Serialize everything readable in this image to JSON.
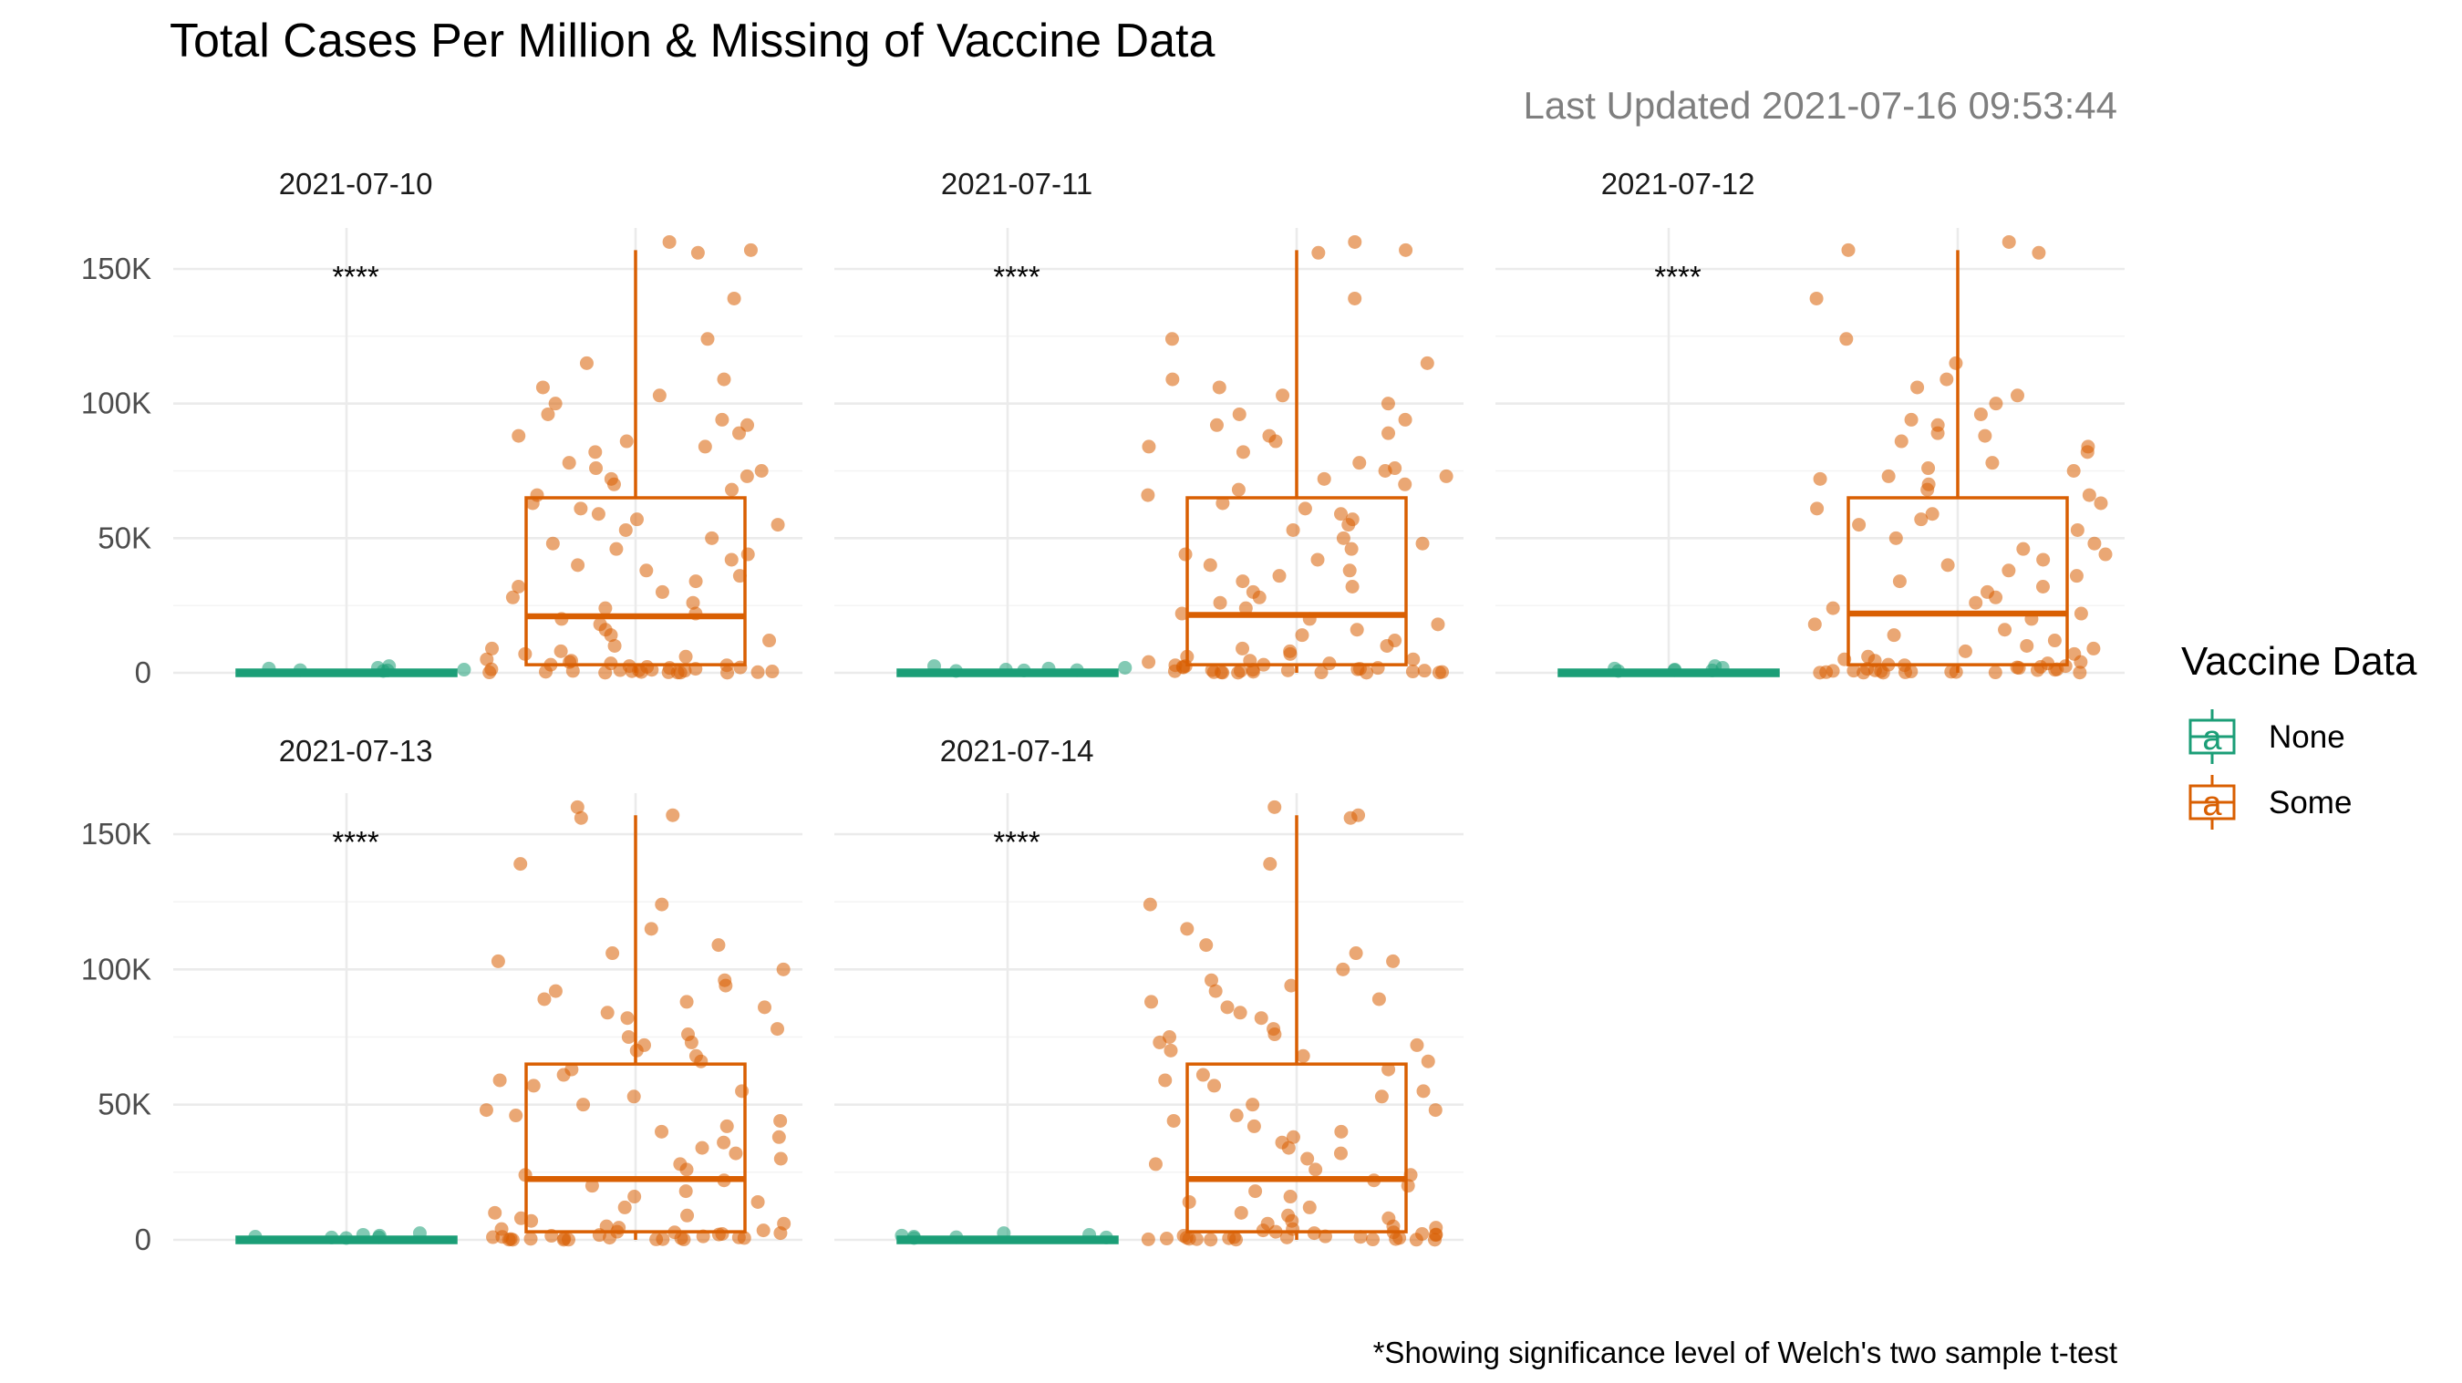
{
  "chart_data": {
    "type": "box",
    "title": "Total Cases Per Million & Missing of Vaccine Data",
    "subtitle": "Last Updated 2021-07-16 09:53:44",
    "caption": "*Showing significance level of Welch's two sample t-test",
    "ylim": [
      0,
      160000
    ],
    "y_ticks": [
      0,
      50000,
      100000,
      150000
    ],
    "y_tick_labels": [
      "0",
      "50K",
      "100K",
      "150K"
    ],
    "grid": true,
    "legend": {
      "title": "Vaccine Data",
      "position": "right",
      "glyph": "a",
      "entries": [
        {
          "name": "None",
          "color": "#1b9e77"
        },
        {
          "name": "Some",
          "color": "#d95f02"
        }
      ]
    },
    "groups": [
      "None",
      "Some"
    ],
    "facets": [
      {
        "label": "2021-07-10",
        "significance": "****",
        "box": {
          "None": {
            "q1": 0,
            "median": 0,
            "q3": 0,
            "lower": 0,
            "upper": 0
          },
          "Some": {
            "q1": 3000,
            "median": 21000,
            "q3": 65000,
            "lower": 0,
            "upper": 157000
          }
        },
        "outliers": {
          "Some": [
            160000
          ]
        }
      },
      {
        "label": "2021-07-11",
        "significance": "****",
        "box": {
          "None": {
            "q1": 0,
            "median": 0,
            "q3": 0,
            "lower": 0,
            "upper": 0
          },
          "Some": {
            "q1": 3000,
            "median": 21500,
            "q3": 65000,
            "lower": 0,
            "upper": 157000
          }
        },
        "outliers": {
          "Some": [
            160000
          ]
        }
      },
      {
        "label": "2021-07-12",
        "significance": "****",
        "box": {
          "None": {
            "q1": 0,
            "median": 0,
            "q3": 0,
            "lower": 0,
            "upper": 0
          },
          "Some": {
            "q1": 3000,
            "median": 22000,
            "q3": 65000,
            "lower": 0,
            "upper": 157000
          }
        },
        "outliers": {
          "Some": [
            160000
          ]
        }
      },
      {
        "label": "2021-07-13",
        "significance": "****",
        "box": {
          "None": {
            "q1": 0,
            "median": 0,
            "q3": 0,
            "lower": 0,
            "upper": 0
          },
          "Some": {
            "q1": 3000,
            "median": 22500,
            "q3": 65000,
            "lower": 0,
            "upper": 157000
          }
        },
        "outliers": {
          "Some": [
            160000
          ]
        }
      },
      {
        "label": "2021-07-14",
        "significance": "****",
        "box": {
          "None": {
            "q1": 0,
            "median": 0,
            "q3": 0,
            "lower": 0,
            "upper": 0
          },
          "Some": {
            "q1": 3000,
            "median": 22500,
            "q3": 65000,
            "lower": 0,
            "upper": 157000
          }
        },
        "outliers": {
          "Some": [
            160000
          ]
        }
      }
    ],
    "points_note_values": {
      "None_sample": [
        0,
        300,
        1200,
        500,
        1800,
        200,
        900
      ],
      "Some_sample": [
        157000,
        156000,
        139000,
        124000,
        115000,
        109000,
        106000,
        103000,
        100000,
        96000,
        94000,
        92000,
        89000,
        88000,
        86000,
        84000,
        82000,
        78000,
        76000,
        75000,
        73000,
        72000,
        70000,
        68000,
        66000,
        63000,
        61000,
        59000,
        57000,
        55000,
        53000,
        50000,
        48000,
        46000,
        44000,
        42000,
        40000,
        38000,
        36000,
        34000,
        32000,
        30000,
        28000,
        26000,
        24000,
        22000,
        20000,
        18000,
        16000,
        14000,
        12000,
        10000,
        9000,
        8000,
        7000,
        6000,
        5000,
        4500,
        4000,
        3500,
        3000,
        2800,
        2500,
        2200,
        2000,
        1800,
        1500,
        1300,
        1100,
        1000,
        900,
        800,
        700,
        600,
        500,
        400,
        300,
        250,
        200,
        150,
        100,
        80,
        60,
        40
      ]
    }
  }
}
